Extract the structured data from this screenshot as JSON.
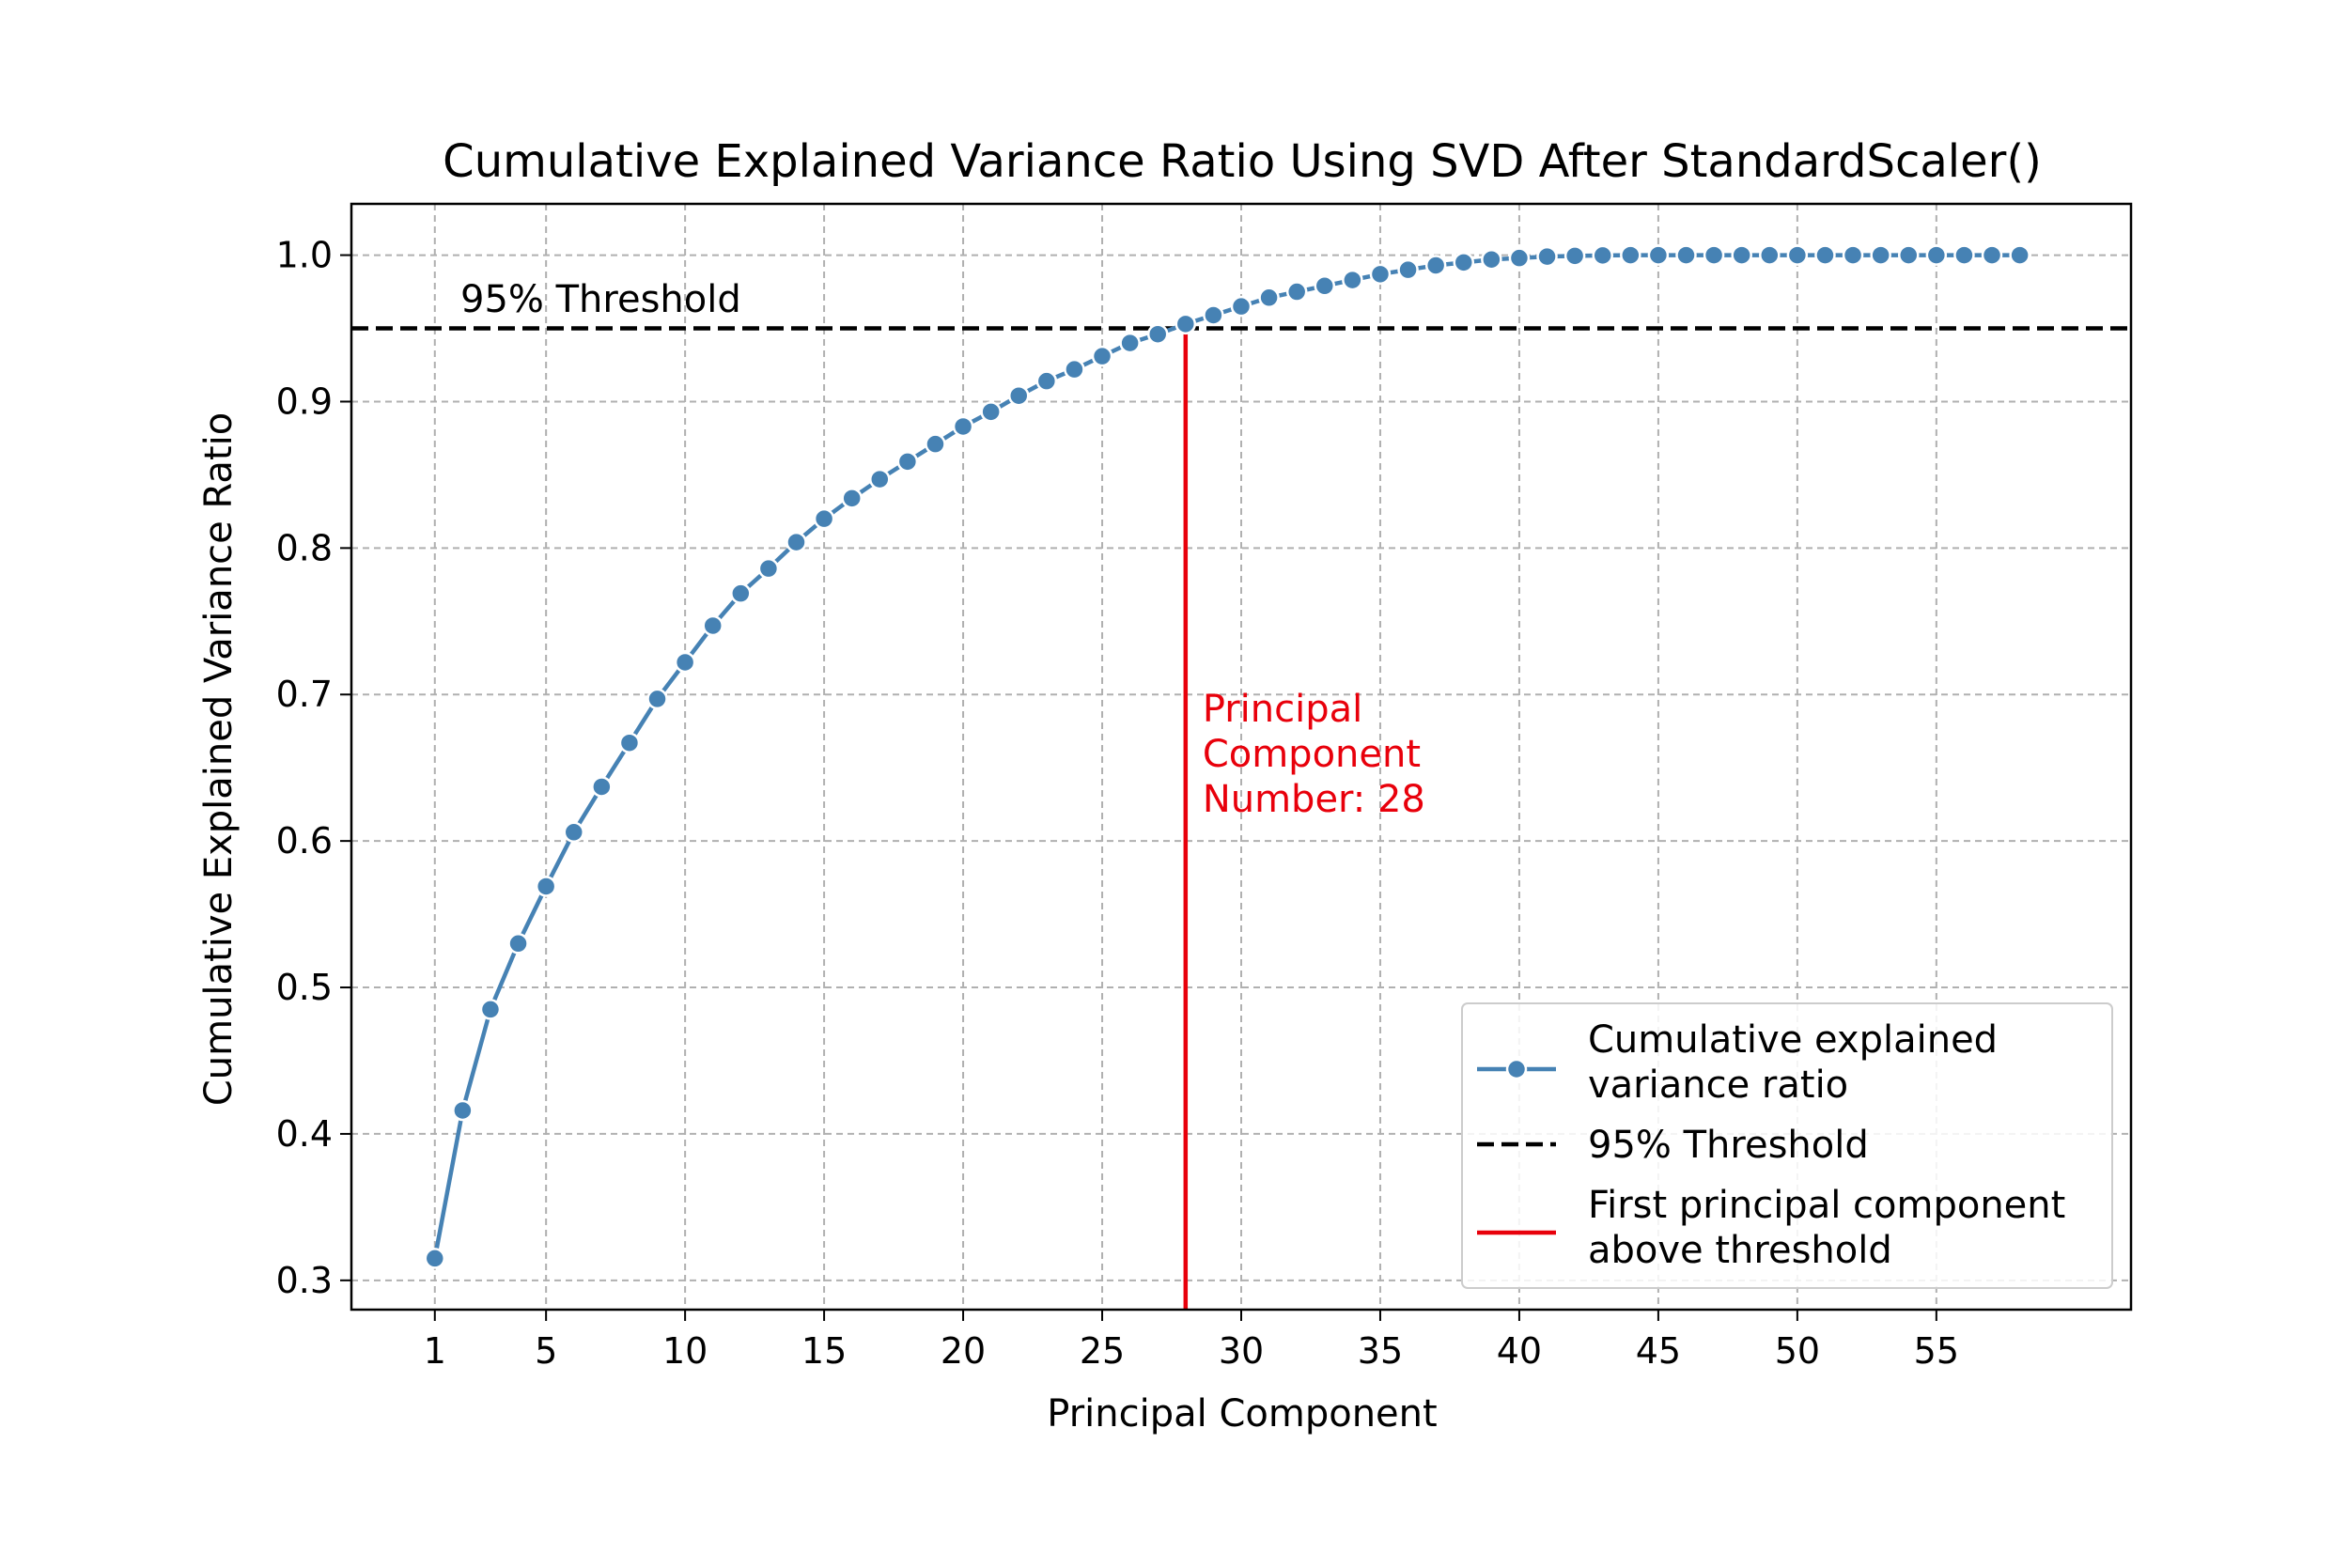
{
  "chart_data": {
    "type": "line",
    "title": "Cumulative Explained Variance Ratio Using SVD After StandardScaler()",
    "xlabel": "Principal Component",
    "ylabel": "Cumulative Explained Variance Ratio",
    "xlim": [
      -2,
      62
    ],
    "ylim": [
      0.28,
      1.035
    ],
    "x_ticks": [
      1,
      5,
      10,
      15,
      20,
      25,
      30,
      35,
      40,
      45,
      50,
      55
    ],
    "y_ticks": [
      0.3,
      0.4,
      0.5,
      0.6,
      0.7,
      0.8,
      0.9,
      1.0
    ],
    "y_tick_labels": [
      "0.3",
      "0.4",
      "0.5",
      "0.6",
      "0.7",
      "0.8",
      "0.9",
      "1.0"
    ],
    "grid": true,
    "series": [
      {
        "name": "Cumulative explained variance ratio",
        "color": "#4682b4",
        "marker": "circle",
        "x": [
          1,
          2,
          3,
          4,
          5,
          6,
          7,
          8,
          9,
          10,
          11,
          12,
          13,
          14,
          15,
          16,
          17,
          18,
          19,
          20,
          21,
          22,
          23,
          24,
          25,
          26,
          27,
          28,
          29,
          30,
          31,
          32,
          33,
          34,
          35,
          36,
          37,
          38,
          39,
          40,
          41,
          42,
          43,
          44,
          45,
          46,
          47,
          48,
          49,
          50,
          51,
          52,
          53,
          54,
          55,
          56,
          57,
          58
        ],
        "values": [
          0.315,
          0.416,
          0.485,
          0.53,
          0.569,
          0.606,
          0.637,
          0.667,
          0.697,
          0.722,
          0.747,
          0.769,
          0.786,
          0.804,
          0.82,
          0.834,
          0.847,
          0.859,
          0.871,
          0.883,
          0.893,
          0.904,
          0.914,
          0.922,
          0.931,
          0.94,
          0.946,
          0.953,
          0.959,
          0.965,
          0.971,
          0.975,
          0.979,
          0.983,
          0.987,
          0.99,
          0.993,
          0.995,
          0.997,
          0.998,
          0.999,
          0.9995,
          0.9998,
          1.0,
          1.0,
          1.0,
          1.0,
          1.0,
          1.0,
          1.0,
          1.0,
          1.0,
          1.0,
          1.0,
          1.0,
          1.0,
          1.0,
          1.0
        ]
      },
      {
        "name": "95% Threshold",
        "color": "#000000",
        "style": "dashed",
        "y": 0.95
      },
      {
        "name": "First principal component above threshold",
        "color": "#e8000b",
        "style": "solid",
        "x": 28,
        "y_top": 0.953
      }
    ],
    "annotations": {
      "threshold_text": "95% Threshold",
      "component_lines": [
        "Principal",
        "Component",
        "Number: 28"
      ]
    },
    "legend": {
      "placement": "lower-right",
      "entries": [
        {
          "lines": [
            "Cumulative explained",
            "variance ratio"
          ]
        },
        {
          "lines": [
            "95% Threshold"
          ]
        },
        {
          "lines": [
            "First principal component",
            "above threshold"
          ]
        }
      ]
    }
  }
}
